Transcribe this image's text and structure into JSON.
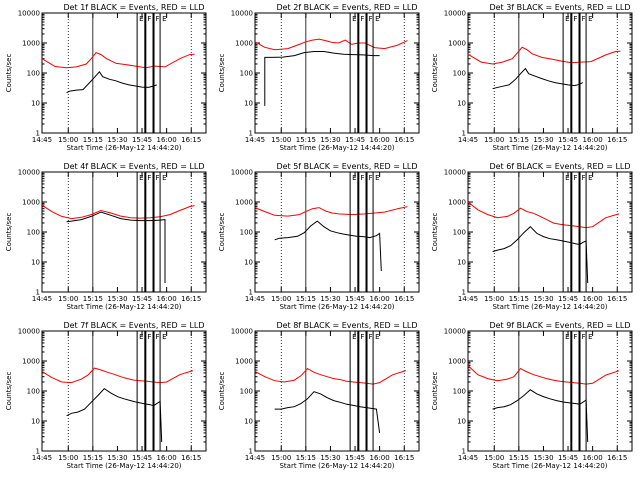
{
  "chart_data": [
    {
      "type": "line",
      "title": "Det 1f BLACK = Events, RED = LLD",
      "xlabel": "Start Time (26-May-12 14:44:20)",
      "ylabel": "Counts/sec",
      "ylim": [
        1,
        10000
      ],
      "y_scale": "log",
      "x_ticks": [
        "14:45",
        "15:00",
        "15:15",
        "15:30",
        "15:45",
        "16:00",
        "16:15"
      ],
      "y_ticks": [
        "1",
        "10",
        "100",
        "1000",
        "10000"
      ],
      "markers": [
        "E",
        "F",
        "F",
        "E"
      ],
      "series": [
        {
          "color": "#ff0000",
          "x": [
            0,
            8,
            15,
            21,
            27,
            30,
            33,
            36,
            39,
            45,
            51,
            57,
            63,
            69,
            75,
            84,
            90,
            93
          ],
          "y": [
            300,
            165,
            150,
            160,
            200,
            300,
            480,
            410,
            310,
            210,
            190,
            170,
            150,
            170,
            160,
            300,
            410,
            420
          ]
        },
        {
          "color": "#000000",
          "x": [
            15,
            17,
            21,
            25,
            29,
            32,
            35,
            37,
            41,
            45,
            49,
            53,
            57,
            61,
            65,
            68,
            70
          ],
          "y": [
            22,
            25,
            27,
            28,
            48,
            72,
            110,
            75,
            62,
            55,
            46,
            40,
            37,
            34,
            33,
            37,
            40
          ]
        }
      ]
    },
    {
      "type": "line",
      "title": "Det 2f BLACK = Events, RED = LLD",
      "xlabel": "Start Time (26-May-12 14:44:20)",
      "ylabel": "Counts/sec",
      "ylim": [
        1,
        10000
      ],
      "y_scale": "log",
      "x_ticks": [
        "14:45",
        "15:00",
        "15:15",
        "15:30",
        "15:45",
        "16:00",
        "16:15"
      ],
      "y_ticks": [
        "1",
        "10",
        "100",
        "1000",
        "10000"
      ],
      "markers": [
        "E",
        "F",
        "F",
        "E"
      ],
      "series": [
        {
          "color": "#ff0000",
          "x": [
            0,
            6,
            12,
            20,
            27,
            31,
            35,
            39,
            43,
            47,
            51,
            55,
            59,
            63,
            67,
            73,
            79,
            87,
            93
          ],
          "y": [
            1100,
            720,
            600,
            650,
            900,
            1100,
            1250,
            1350,
            1200,
            1050,
            1000,
            1250,
            900,
            1000,
            1000,
            700,
            650,
            850,
            1200
          ]
        },
        {
          "color": "#000000",
          "x": [
            6,
            6,
            10,
            17,
            24,
            30,
            36,
            42,
            48,
            54,
            60,
            66,
            72,
            76
          ],
          "y": [
            8,
            330,
            330,
            340,
            380,
            480,
            520,
            520,
            460,
            420,
            410,
            400,
            380,
            380
          ]
        }
      ]
    },
    {
      "type": "line",
      "title": "Det 3f BLACK = Events, RED = LLD",
      "xlabel": "Start Time (26-May-12 14:44:20)",
      "ylabel": "Counts/sec",
      "ylim": [
        1,
        10000
      ],
      "y_scale": "log",
      "x_ticks": [
        "14:45",
        "15:00",
        "15:15",
        "15:30",
        "15:45",
        "16:00",
        "16:15"
      ],
      "y_ticks": [
        "1",
        "10",
        "100",
        "1000",
        "10000"
      ],
      "markers": [
        "E",
        "F",
        "F",
        "E"
      ],
      "series": [
        {
          "color": "#ff0000",
          "x": [
            0,
            8,
            15,
            21,
            27,
            30,
            33,
            36,
            39,
            45,
            51,
            57,
            63,
            69,
            75,
            84,
            90,
            93
          ],
          "y": [
            420,
            230,
            200,
            230,
            300,
            460,
            720,
            600,
            440,
            330,
            290,
            250,
            220,
            230,
            240,
            400,
            520,
            530
          ]
        },
        {
          "color": "#000000",
          "x": [
            15,
            17,
            21,
            25,
            29,
            32,
            35,
            37,
            41,
            45,
            49,
            53,
            57,
            61,
            65,
            68,
            70
          ],
          "y": [
            30,
            32,
            36,
            40,
            62,
            95,
            140,
            95,
            78,
            65,
            55,
            48,
            44,
            40,
            38,
            42,
            48
          ]
        }
      ]
    },
    {
      "type": "line",
      "title": "Det 4f BLACK = Events, RED = LLD",
      "xlabel": "Start Time (26-May-12 14:44:20)",
      "ylabel": "Counts/sec",
      "ylim": [
        1,
        10000
      ],
      "y_scale": "log",
      "x_ticks": [
        "14:45",
        "15:00",
        "15:15",
        "15:30",
        "15:45",
        "16:00",
        "16:15"
      ],
      "y_ticks": [
        "1",
        "10",
        "100",
        "1000",
        "10000"
      ],
      "markers": [
        "E",
        "F",
        "F",
        "E"
      ],
      "series": [
        {
          "color": "#ff0000",
          "x": [
            0,
            6,
            12,
            18,
            24,
            30,
            36,
            42,
            48,
            54,
            60,
            66,
            72,
            78,
            84,
            90,
            93
          ],
          "y": [
            780,
            480,
            330,
            280,
            310,
            380,
            520,
            430,
            340,
            300,
            290,
            300,
            320,
            380,
            520,
            700,
            760
          ]
        },
        {
          "color": "#000000",
          "x": [
            15,
            18,
            24,
            30,
            36,
            42,
            48,
            54,
            60,
            66,
            72,
            75,
            75
          ],
          "y": [
            220,
            230,
            260,
            330,
            460,
            360,
            280,
            250,
            240,
            240,
            250,
            260,
            2
          ]
        }
      ]
    },
    {
      "type": "line",
      "title": "Det 5f BLACK = Events, RED = LLD",
      "xlabel": "Start Time (26-May-12 14:44:20)",
      "ylabel": "Counts/sec",
      "ylim": [
        1,
        10000
      ],
      "y_scale": "log",
      "x_ticks": [
        "14:45",
        "15:00",
        "15:15",
        "15:30",
        "15:45",
        "16:00",
        "16:15"
      ],
      "y_ticks": [
        "1",
        "10",
        "100",
        "1000",
        "10000"
      ],
      "markers": [
        "E",
        "F",
        "F",
        "E"
      ],
      "series": [
        {
          "color": "#ff0000",
          "x": [
            0,
            6,
            12,
            20,
            27,
            31,
            35,
            39,
            43,
            47,
            51,
            55,
            59,
            63,
            67,
            73,
            79,
            87,
            93
          ],
          "y": [
            650,
            480,
            360,
            340,
            380,
            480,
            600,
            650,
            500,
            430,
            400,
            390,
            380,
            390,
            400,
            430,
            460,
            600,
            700
          ]
        },
        {
          "color": "#000000",
          "x": [
            12,
            15,
            20,
            26,
            30,
            34,
            38,
            42,
            46,
            50,
            54,
            58,
            62,
            66,
            70,
            74,
            76,
            77
          ],
          "y": [
            55,
            62,
            65,
            72,
            95,
            160,
            230,
            150,
            110,
            95,
            85,
            78,
            72,
            70,
            65,
            75,
            90,
            5
          ]
        }
      ]
    },
    {
      "type": "line",
      "title": "Det 6f BLACK = Events, RED = LLD",
      "xlabel": "Start Time (26-May-12 14:44:20)",
      "ylabel": "Counts/sec",
      "ylim": [
        1,
        10000
      ],
      "y_scale": "log",
      "x_ticks": [
        "14:45",
        "15:00",
        "15:15",
        "15:30",
        "15:45",
        "16:00",
        "16:15"
      ],
      "y_ticks": [
        "1",
        "10",
        "100",
        "1000",
        "10000"
      ],
      "markers": [
        "E",
        "F",
        "F",
        "E"
      ],
      "series": [
        {
          "color": "#ff0000",
          "x": [
            0,
            6,
            12,
            18,
            24,
            28,
            32,
            36,
            40,
            44,
            48,
            52,
            56,
            60,
            64,
            68,
            72,
            76,
            84,
            92
          ],
          "y": [
            1000,
            550,
            380,
            300,
            330,
            420,
            620,
            480,
            420,
            330,
            260,
            200,
            180,
            170,
            160,
            150,
            140,
            150,
            300,
            400
          ]
        },
        {
          "color": "#000000",
          "x": [
            15,
            18,
            22,
            26,
            30,
            34,
            38,
            42,
            46,
            50,
            54,
            58,
            62,
            66,
            68,
            70,
            72,
            73
          ],
          "y": [
            22,
            25,
            28,
            35,
            55,
            95,
            150,
            90,
            70,
            60,
            55,
            50,
            45,
            40,
            38,
            45,
            50,
            2
          ]
        }
      ]
    },
    {
      "type": "line",
      "title": "Det 7f BLACK = Events, RED = LLD",
      "xlabel": "Start Time (26-May-12 14:44:20)",
      "ylabel": "Counts/sec",
      "ylim": [
        1,
        10000
      ],
      "y_scale": "log",
      "x_ticks": [
        "14:45",
        "15:00",
        "15:15",
        "15:30",
        "15:45",
        "16:00",
        "16:15"
      ],
      "y_ticks": [
        "1",
        "10",
        "100",
        "1000",
        "10000"
      ],
      "markers": [
        "E",
        "F",
        "F",
        "E"
      ],
      "series": [
        {
          "color": "#ff0000",
          "x": [
            0,
            6,
            12,
            18,
            24,
            28,
            32,
            36,
            40,
            44,
            48,
            52,
            56,
            60,
            64,
            68,
            72,
            76,
            84,
            92
          ],
          "y": [
            450,
            280,
            200,
            190,
            250,
            340,
            580,
            500,
            420,
            360,
            300,
            260,
            230,
            220,
            210,
            200,
            190,
            200,
            350,
            480
          ]
        },
        {
          "color": "#000000",
          "x": [
            15,
            18,
            22,
            26,
            30,
            34,
            38,
            42,
            46,
            50,
            54,
            58,
            62,
            66,
            68,
            70,
            72,
            73
          ],
          "y": [
            15,
            18,
            20,
            25,
            42,
            70,
            120,
            85,
            65,
            55,
            48,
            42,
            38,
            35,
            32,
            38,
            45,
            2
          ]
        }
      ]
    },
    {
      "type": "line",
      "title": "Det 8f BLACK = Events, RED = LLD",
      "xlabel": "Start Time (26-May-12 14:44:20)",
      "ylabel": "Counts/sec",
      "ylim": [
        1,
        10000
      ],
      "y_scale": "log",
      "x_ticks": [
        "14:45",
        "15:00",
        "15:15",
        "15:30",
        "15:45",
        "16:00",
        "16:15"
      ],
      "y_ticks": [
        "1",
        "10",
        "100",
        "1000",
        "10000"
      ],
      "markers": [
        "E",
        "F",
        "F",
        "E"
      ],
      "series": [
        {
          "color": "#ff0000",
          "x": [
            0,
            6,
            12,
            18,
            24,
            28,
            32,
            36,
            40,
            44,
            48,
            52,
            56,
            60,
            64,
            68,
            72,
            76,
            84,
            92
          ],
          "y": [
            450,
            300,
            220,
            200,
            230,
            320,
            560,
            420,
            350,
            300,
            260,
            240,
            210,
            200,
            190,
            180,
            170,
            190,
            350,
            480
          ]
        },
        {
          "color": "#000000",
          "x": [
            12,
            16,
            20,
            24,
            28,
            32,
            36,
            40,
            44,
            48,
            52,
            56,
            60,
            64,
            68,
            72,
            74,
            76
          ],
          "y": [
            25,
            25,
            28,
            30,
            38,
            55,
            95,
            80,
            60,
            48,
            42,
            36,
            33,
            30,
            28,
            26,
            25,
            4
          ]
        }
      ]
    },
    {
      "type": "line",
      "title": "Det 9f BLACK = Events, RED = LLD",
      "xlabel": "Start Time (26-May-12 14:44:20)",
      "ylabel": "Counts/sec",
      "ylim": [
        1,
        10000
      ],
      "y_scale": "log",
      "x_ticks": [
        "14:45",
        "15:00",
        "15:15",
        "15:30",
        "15:45",
        "16:00",
        "16:15"
      ],
      "y_ticks": [
        "1",
        "10",
        "100",
        "1000",
        "10000"
      ],
      "markers": [
        "E",
        "F",
        "F",
        "E"
      ],
      "series": [
        {
          "color": "#ff0000",
          "x": [
            0,
            6,
            12,
            18,
            24,
            28,
            32,
            36,
            40,
            44,
            48,
            52,
            56,
            60,
            64,
            68,
            72,
            76,
            84,
            92
          ],
          "y": [
            700,
            350,
            260,
            220,
            250,
            300,
            560,
            430,
            350,
            300,
            260,
            230,
            210,
            200,
            190,
            180,
            170,
            180,
            340,
            470
          ]
        },
        {
          "color": "#000000",
          "x": [
            15,
            18,
            22,
            26,
            30,
            34,
            38,
            42,
            46,
            50,
            54,
            58,
            62,
            66,
            68,
            70,
            72,
            73
          ],
          "y": [
            25,
            28,
            30,
            35,
            48,
            70,
            110,
            80,
            65,
            55,
            48,
            43,
            40,
            38,
            36,
            42,
            50,
            2
          ]
        }
      ]
    }
  ]
}
